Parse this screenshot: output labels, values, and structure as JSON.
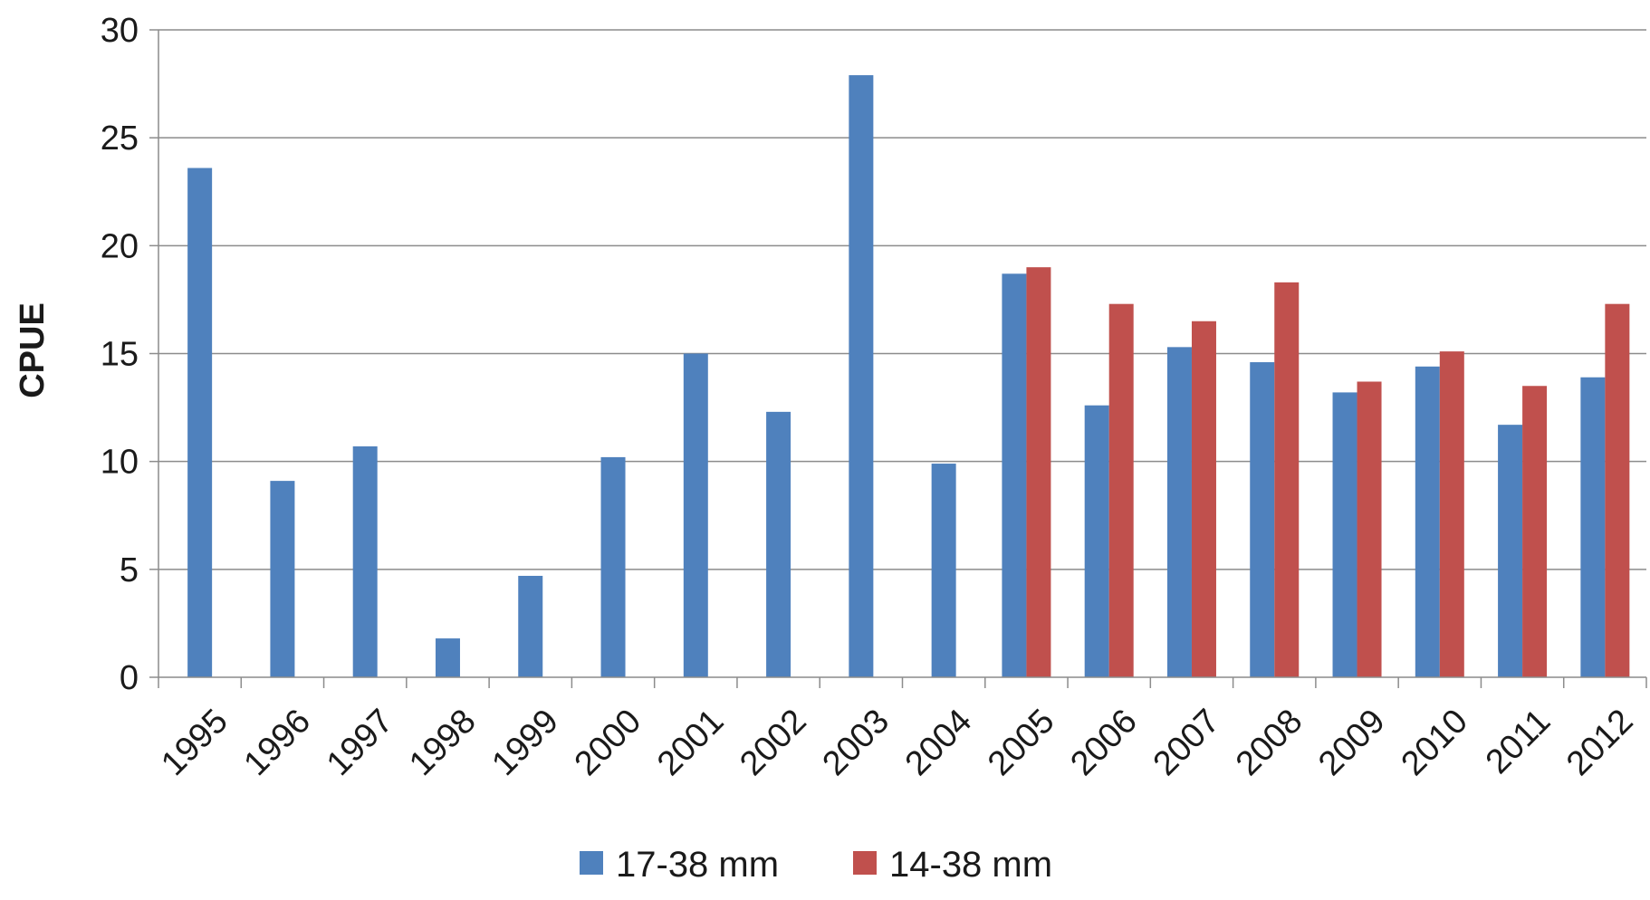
{
  "chart_data": {
    "type": "bar",
    "title": "",
    "xlabel": "",
    "ylabel": "CPUE",
    "ylim": [
      0,
      30
    ],
    "yticks": [
      0,
      5,
      10,
      15,
      20,
      25,
      30
    ],
    "grid": true,
    "legend_position": "bottom",
    "categories": [
      "1995",
      "1996",
      "1997",
      "1998",
      "1999",
      "2000",
      "2001",
      "2002",
      "2003",
      "2004",
      "2005",
      "2006",
      "2007",
      "2008",
      "2009",
      "2010",
      "2011",
      "2012"
    ],
    "series": [
      {
        "name": "17-38 mm",
        "color": "#4f81bd",
        "values": [
          23.6,
          9.1,
          10.7,
          1.8,
          4.7,
          10.2,
          15.0,
          12.3,
          27.9,
          9.9,
          18.7,
          12.6,
          15.3,
          14.6,
          13.2,
          14.4,
          11.7,
          13.9
        ]
      },
      {
        "name": "14-38 mm",
        "color": "#c0504d",
        "values": [
          null,
          null,
          null,
          null,
          null,
          null,
          null,
          null,
          null,
          null,
          19.0,
          17.3,
          16.5,
          18.3,
          13.7,
          15.1,
          13.5,
          17.3
        ]
      }
    ]
  }
}
